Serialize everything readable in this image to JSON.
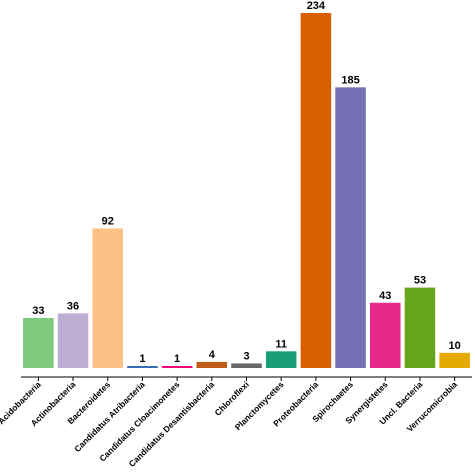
{
  "chart_data": {
    "type": "bar",
    "title": "",
    "xlabel": "",
    "ylabel": "",
    "ylim": [
      0,
      234
    ],
    "grid": false,
    "legend": "none",
    "categories": [
      "Acidobacteria",
      "Actinobacteria",
      "Bacteroidetes",
      "Candidatus Atribacteria",
      "Candidatus Cloacimonetes",
      "Candidatus Desantisbacteria",
      "Chloroflexi",
      "Planctomycetes",
      "Proteobacteria",
      "Spirochaetes",
      "Synergistetes",
      "Uncl. Bacteria",
      "Verrucomicrobia"
    ],
    "values": [
      33,
      36,
      92,
      1,
      1,
      4,
      3,
      11,
      234,
      185,
      43,
      53,
      10
    ],
    "colors": [
      "#7fc97f",
      "#beaed4",
      "#fdc086",
      "#386cb0",
      "#f0027f",
      "#bf5b17",
      "#666666",
      "#1b9e77",
      "#d95f02",
      "#7570b3",
      "#e7298a",
      "#66a61e",
      "#e6ab02"
    ]
  }
}
